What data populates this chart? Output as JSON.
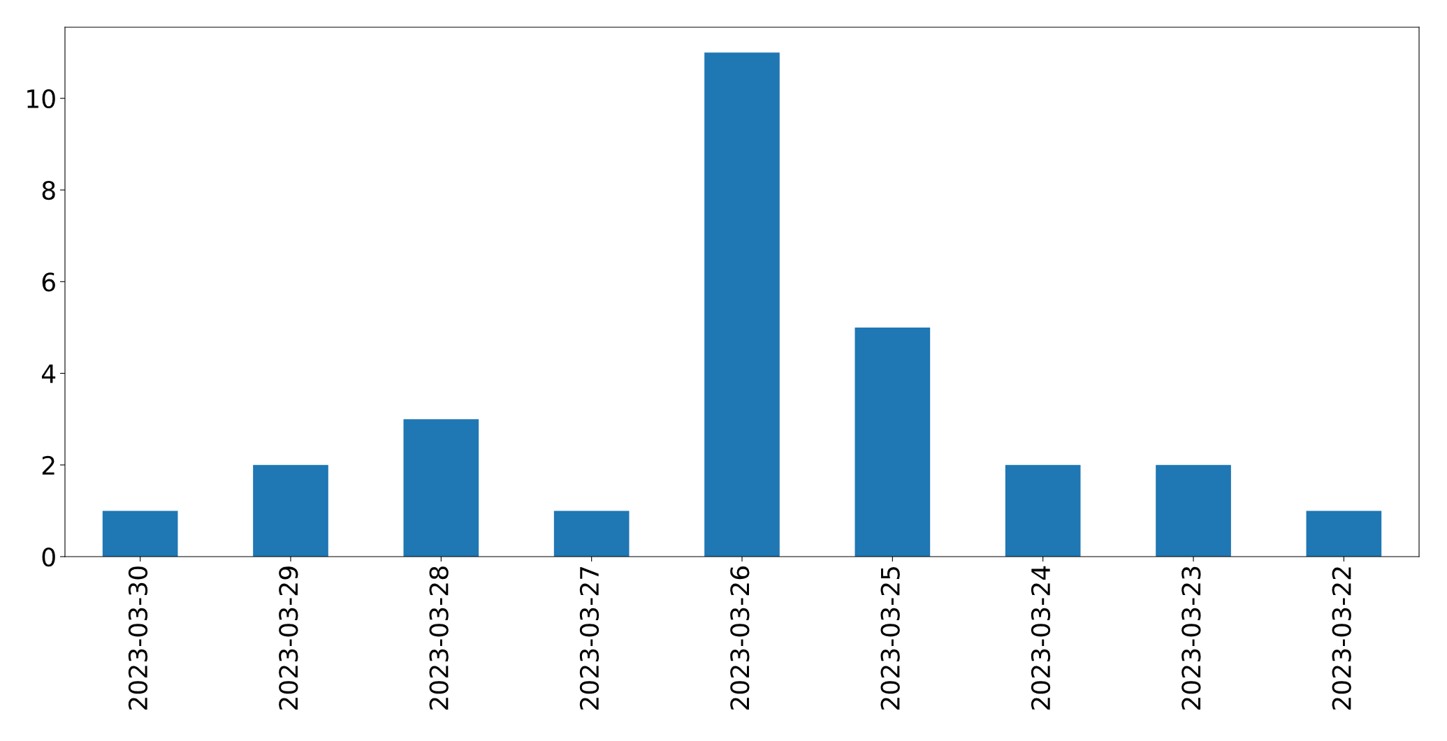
{
  "chart_data": {
    "type": "bar",
    "categories": [
      "2023-03-30",
      "2023-03-29",
      "2023-03-28",
      "2023-03-27",
      "2023-03-26",
      "2023-03-25",
      "2023-03-24",
      "2023-03-23",
      "2023-03-22"
    ],
    "values": [
      1,
      2,
      3,
      1,
      11,
      5,
      2,
      2,
      1
    ],
    "color": "#1f77b4",
    "ylim": [
      0,
      11.55
    ],
    "yticks": [
      0,
      2,
      4,
      6,
      8,
      10
    ],
    "grid": false
  }
}
